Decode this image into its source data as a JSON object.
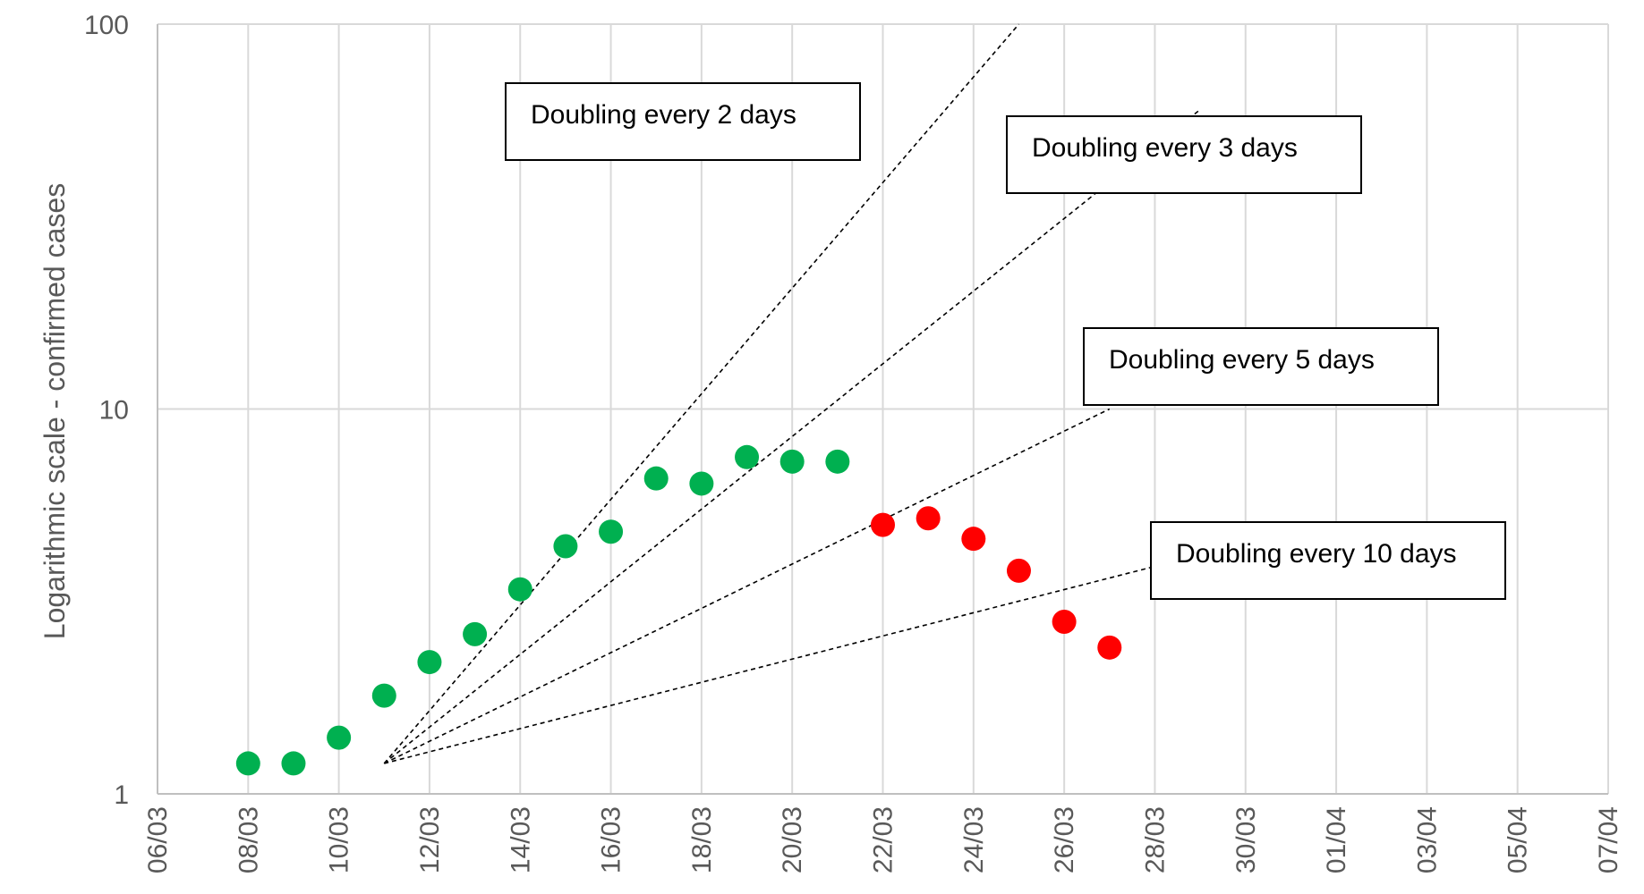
{
  "chart_data": {
    "type": "scatter",
    "title": "",
    "xlabel": "",
    "ylabel": "Logarithmic scale - confirmed cases",
    "y_scale": "log",
    "ylim": [
      1,
      100
    ],
    "y_ticks": [
      "1",
      "10",
      "100"
    ],
    "xlim": [
      "06/03",
      "07/04"
    ],
    "x_ticks": [
      "06/03",
      "08/03",
      "10/03",
      "12/03",
      "14/03",
      "16/03",
      "18/03",
      "20/03",
      "22/03",
      "24/03",
      "26/03",
      "28/03",
      "30/03",
      "01/04",
      "03/04",
      "05/04",
      "07/04"
    ],
    "grid": true,
    "series": [
      {
        "color": "#00b050",
        "points": [
          {
            "x": "08/03",
            "y": 1.2
          },
          {
            "x": "09/03",
            "y": 1.2
          },
          {
            "x": "10/03",
            "y": 1.4
          },
          {
            "x": "11/03",
            "y": 1.8
          },
          {
            "x": "12/03",
            "y": 2.2
          },
          {
            "x": "13/03",
            "y": 2.6
          },
          {
            "x": "14/03",
            "y": 3.4
          },
          {
            "x": "15/03",
            "y": 4.4
          },
          {
            "x": "16/03",
            "y": 4.8
          },
          {
            "x": "17/03",
            "y": 6.6
          },
          {
            "x": "18/03",
            "y": 6.4
          },
          {
            "x": "19/03",
            "y": 7.5
          },
          {
            "x": "20/03",
            "y": 7.3
          },
          {
            "x": "21/03",
            "y": 7.3
          }
        ]
      },
      {
        "color": "#ff0000",
        "points": [
          {
            "x": "22/03",
            "y": 5.0
          },
          {
            "x": "23/03",
            "y": 5.2
          },
          {
            "x": "24/03",
            "y": 4.6
          },
          {
            "x": "25/03",
            "y": 3.8
          },
          {
            "x": "26/03",
            "y": 2.8
          },
          {
            "x": "27/03",
            "y": 2.4
          }
        ]
      }
    ],
    "guides": [
      {
        "label": "Doubling every 2 days",
        "start": {
          "x": "11/03",
          "y": 1.2
        },
        "end": {
          "x": "25/03",
          "y": 100
        }
      },
      {
        "label": "Doubling every 3 days",
        "start": {
          "x": "11/03",
          "y": 1.2
        },
        "end": {
          "x": "29/03",
          "y": 60
        }
      },
      {
        "label": "Doubling every 5 days",
        "start": {
          "x": "11/03",
          "y": 1.2
        },
        "end": {
          "x": "27/03",
          "y": 10
        }
      },
      {
        "label": "Doubling every 10 days",
        "start": {
          "x": "11/03",
          "y": 1.2
        },
        "end": {
          "x": "28/03",
          "y": 3.9
        }
      }
    ]
  }
}
